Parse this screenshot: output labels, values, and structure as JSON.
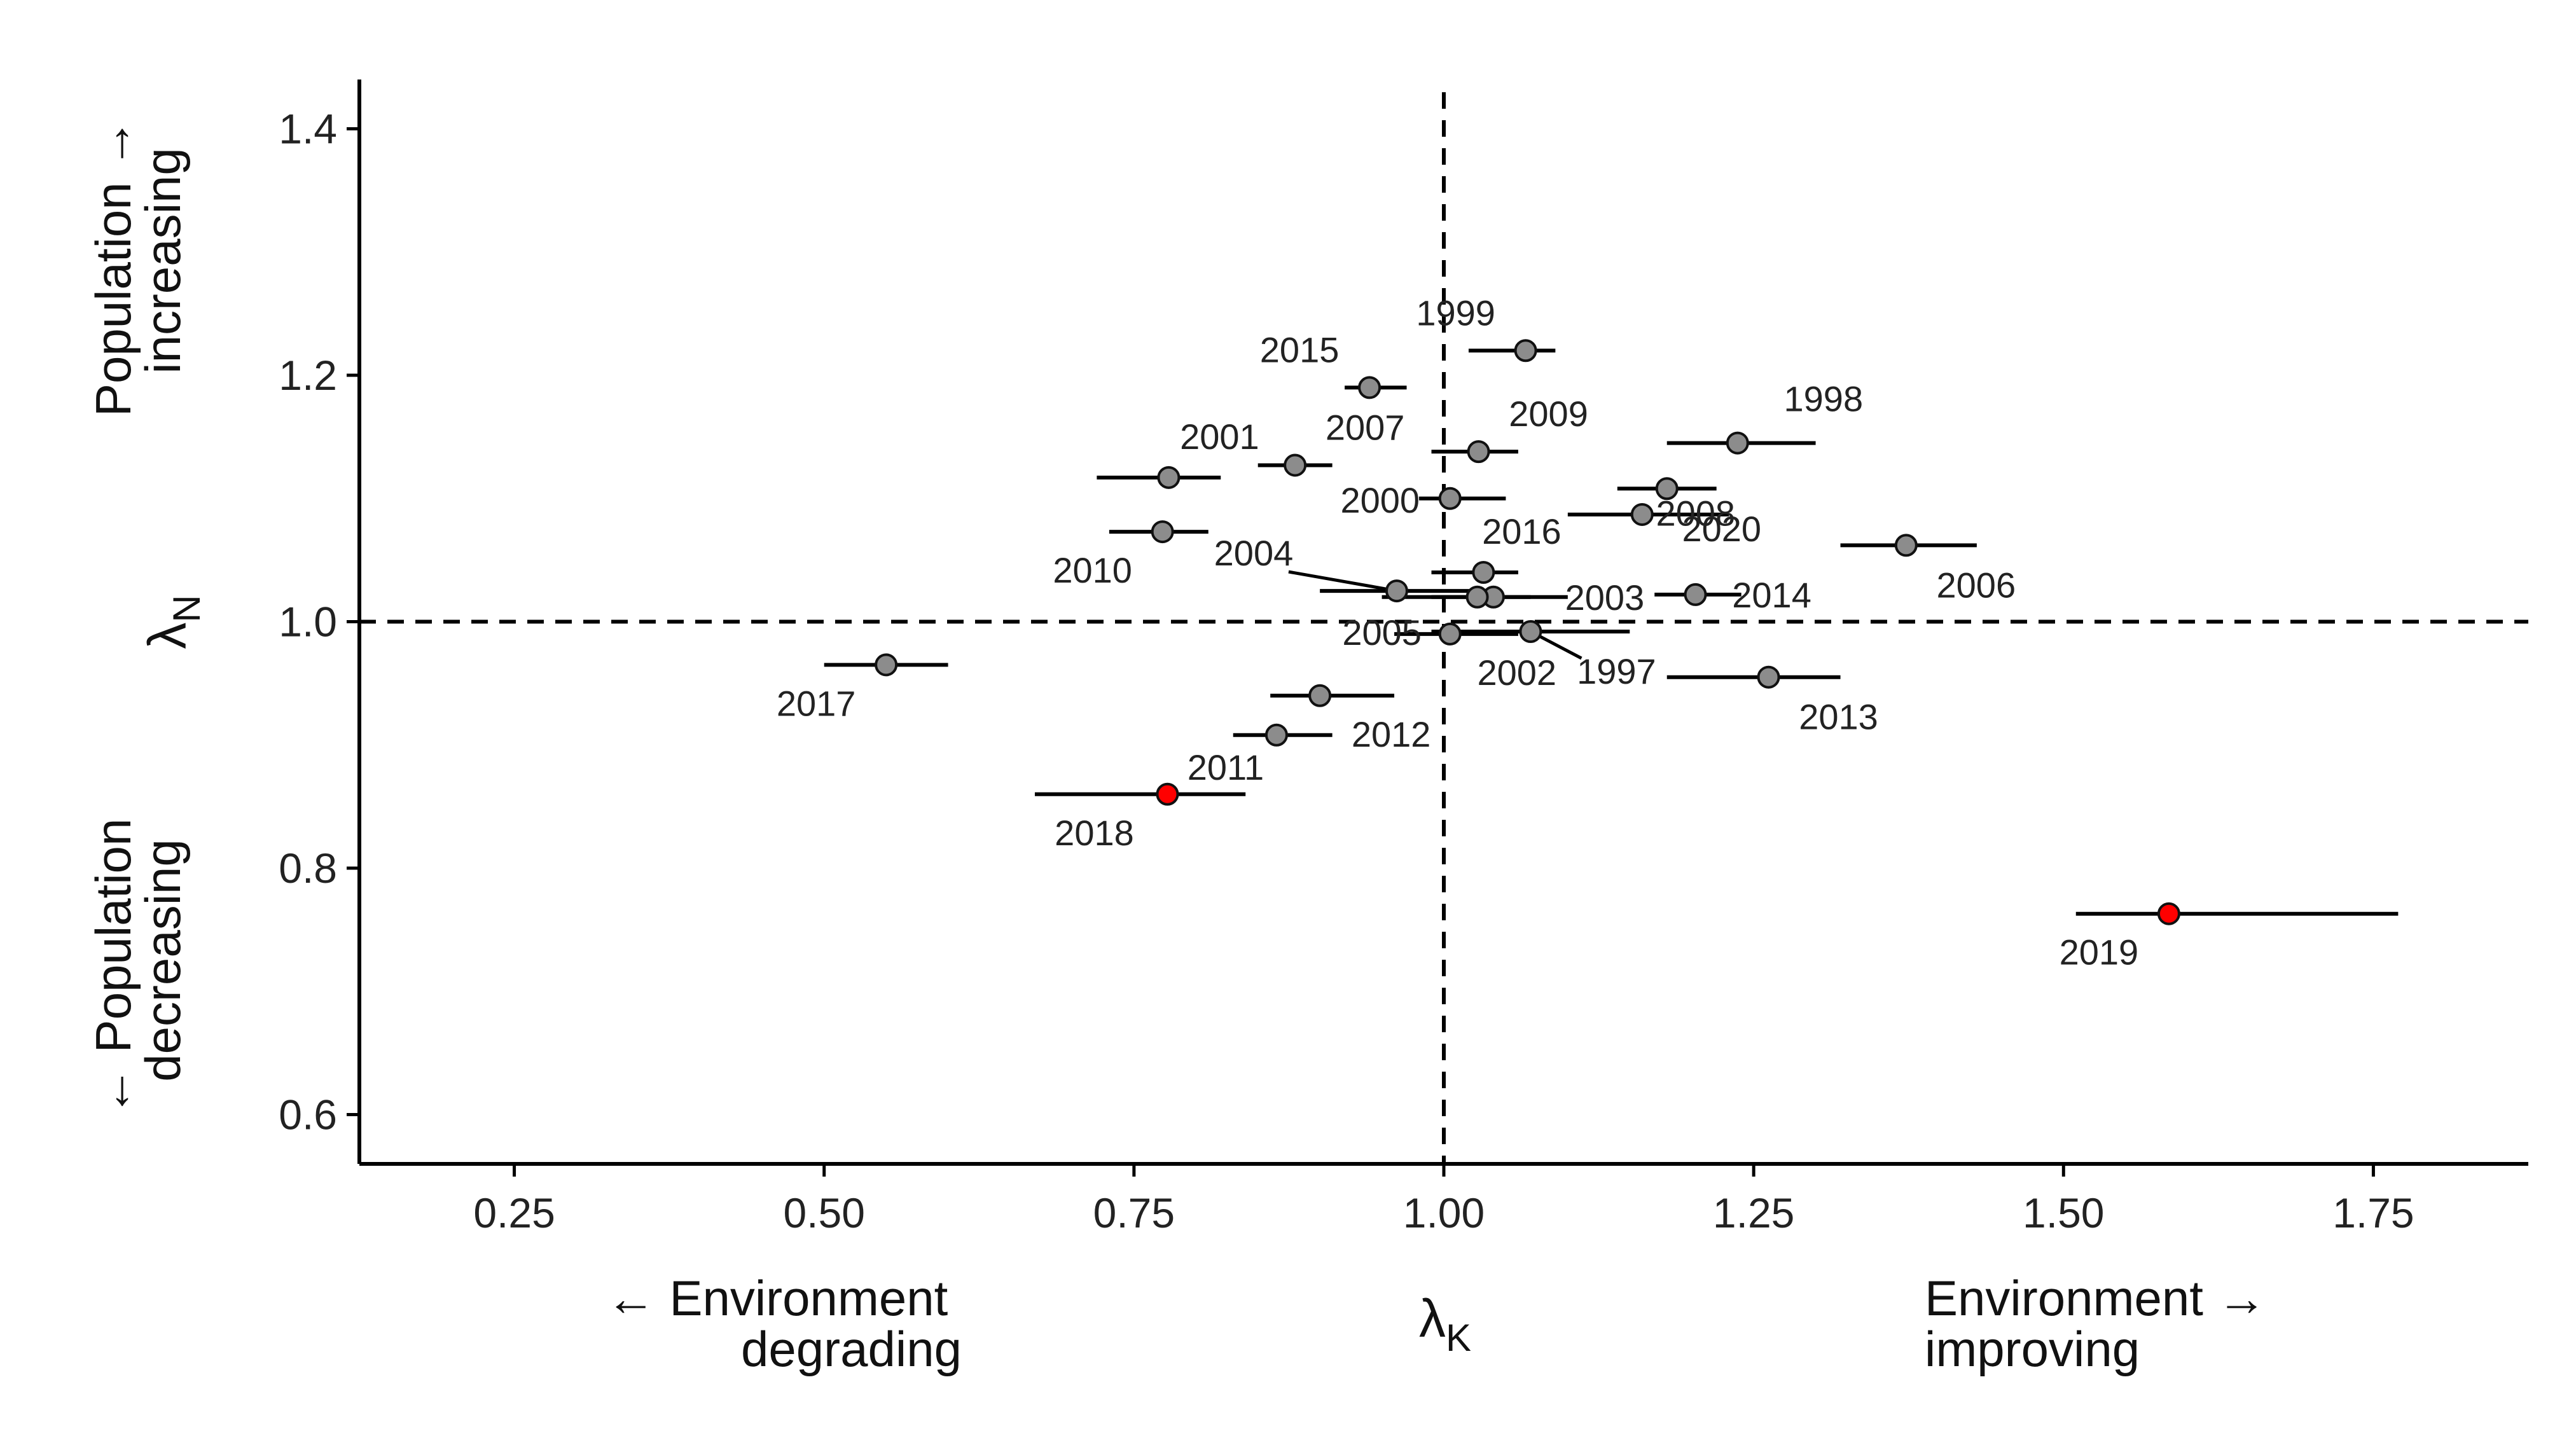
{
  "chart_data": {
    "type": "scatter",
    "title": "",
    "xlabel": "λ",
    "xlabel_sub": "K",
    "ylabel": "λ",
    "ylabel_sub": "N",
    "xlim": [
      0.125,
      1.875
    ],
    "ylim": [
      0.56,
      1.44
    ],
    "x_ticks": [
      0.25,
      0.5,
      0.75,
      1.0,
      1.25,
      1.5,
      1.75
    ],
    "x_tick_labels": [
      "0.25",
      "0.50",
      "0.75",
      "1.00",
      "1.25",
      "1.50",
      "1.75"
    ],
    "y_ticks": [
      0.6,
      0.8,
      1.0,
      1.2,
      1.4
    ],
    "y_tick_labels": [
      "0.6",
      "0.8",
      "1.0",
      "1.2",
      "1.4"
    ],
    "reference_lines": {
      "x": 1.0,
      "y": 1.0,
      "style": "dashed"
    },
    "grid": false,
    "x_annotations": {
      "left_line1": "← Environment",
      "left_line2": "degrading",
      "right_line1": "Environment →",
      "right_line2": "improving"
    },
    "y_annotations": {
      "top_line1": "Population →",
      "top_line2": "increasing",
      "bottom_line1": "← Population",
      "bottom_line2": "decreasing"
    },
    "colors": {
      "normal": "#8c8c8c",
      "highlight": "#ff0000",
      "outline": "#111111"
    },
    "points": [
      {
        "year": "1997",
        "x": 1.07,
        "y": 0.992,
        "xmin": 0.99,
        "xmax": 1.15,
        "highlight": false
      },
      {
        "year": "1998",
        "x": 1.237,
        "y": 1.145,
        "xmin": 1.18,
        "xmax": 1.3,
        "highlight": false
      },
      {
        "year": "1999",
        "x": 1.066,
        "y": 1.22,
        "xmin": 1.02,
        "xmax": 1.09,
        "highlight": false
      },
      {
        "year": "2000",
        "x": 1.005,
        "y": 1.1,
        "xmin": 0.98,
        "xmax": 1.05,
        "highlight": false
      },
      {
        "year": "2001",
        "x": 0.778,
        "y": 1.117,
        "xmin": 0.72,
        "xmax": 0.82,
        "highlight": false
      },
      {
        "year": "2002",
        "x": 1.005,
        "y": 0.99,
        "xmin": 0.96,
        "xmax": 1.06,
        "highlight": false
      },
      {
        "year": "2003",
        "x": 1.04,
        "y": 1.02,
        "xmin": 0.99,
        "xmax": 1.1,
        "highlight": false
      },
      {
        "year": "2004",
        "x": 0.962,
        "y": 1.025,
        "xmin": 0.9,
        "xmax": 1.03,
        "highlight": false
      },
      {
        "year": "2005",
        "x": 1.027,
        "y": 1.02,
        "xmin": 0.95,
        "xmax": 1.07,
        "highlight": false
      },
      {
        "year": "2006",
        "x": 1.373,
        "y": 1.062,
        "xmin": 1.32,
        "xmax": 1.43,
        "highlight": false
      },
      {
        "year": "2007",
        "x": 0.88,
        "y": 1.127,
        "xmin": 0.85,
        "xmax": 0.91,
        "highlight": false
      },
      {
        "year": "2008",
        "x": 1.18,
        "y": 1.108,
        "xmin": 1.14,
        "xmax": 1.22,
        "highlight": false
      },
      {
        "year": "2009",
        "x": 1.028,
        "y": 1.138,
        "xmin": 0.99,
        "xmax": 1.06,
        "highlight": false
      },
      {
        "year": "2010",
        "x": 0.773,
        "y": 1.073,
        "xmin": 0.73,
        "xmax": 0.81,
        "highlight": false
      },
      {
        "year": "2011",
        "x": 0.865,
        "y": 0.908,
        "xmin": 0.83,
        "xmax": 0.91,
        "highlight": false
      },
      {
        "year": "2012",
        "x": 0.9,
        "y": 0.94,
        "xmin": 0.86,
        "xmax": 0.96,
        "highlight": false
      },
      {
        "year": "2013",
        "x": 1.262,
        "y": 0.955,
        "xmin": 1.18,
        "xmax": 1.32,
        "highlight": false
      },
      {
        "year": "2014",
        "x": 1.203,
        "y": 1.022,
        "xmin": 1.17,
        "xmax": 1.24,
        "highlight": false
      },
      {
        "year": "2015",
        "x": 0.94,
        "y": 1.19,
        "xmin": 0.92,
        "xmax": 0.97,
        "highlight": false
      },
      {
        "year": "2016",
        "x": 1.032,
        "y": 1.04,
        "xmin": 0.99,
        "xmax": 1.06,
        "highlight": false
      },
      {
        "year": "2017",
        "x": 0.55,
        "y": 0.965,
        "xmin": 0.5,
        "xmax": 0.6,
        "highlight": false
      },
      {
        "year": "2018",
        "x": 0.777,
        "y": 0.86,
        "xmin": 0.67,
        "xmax": 0.84,
        "highlight": true
      },
      {
        "year": "2019",
        "x": 1.585,
        "y": 0.763,
        "xmin": 1.51,
        "xmax": 1.77,
        "highlight": true
      },
      {
        "year": "2020",
        "x": 1.16,
        "y": 1.087,
        "xmin": 1.1,
        "xmax": 1.23,
        "highlight": false
      }
    ]
  }
}
